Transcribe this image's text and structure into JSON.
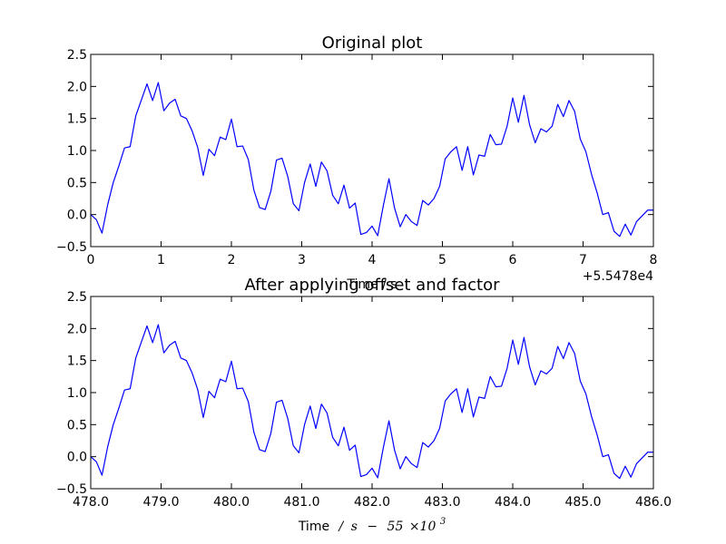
{
  "chart_data": [
    {
      "type": "line",
      "title": "Original plot",
      "xlabel": "Time / s",
      "ylabel": "",
      "xlim": [
        0,
        8
      ],
      "ylim": [
        -0.5,
        2.5
      ],
      "xticks": [
        0,
        1,
        2,
        3,
        4,
        5,
        6,
        7,
        8
      ],
      "xtick_labels": [
        "0",
        "1",
        "2",
        "3",
        "4",
        "5",
        "6",
        "7",
        "8"
      ],
      "yticks": [
        -0.5,
        0.0,
        0.5,
        1.0,
        1.5,
        2.0,
        2.5
      ],
      "ytick_labels": [
        "−0.5",
        "0.0",
        "0.5",
        "1.0",
        "1.5",
        "2.0",
        "2.5"
      ],
      "offset_text": "+5.5478e4",
      "grid": false,
      "line_color": "#0000ff",
      "x": [
        0,
        0.08,
        0.16,
        0.24,
        0.32,
        0.4,
        0.48,
        0.56,
        0.64,
        0.72,
        0.8,
        0.88,
        0.96,
        1.04,
        1.12,
        1.2,
        1.28,
        1.36,
        1.44,
        1.52,
        1.6,
        1.68,
        1.76,
        1.84,
        1.92,
        2.0,
        2.08,
        2.16,
        2.24,
        2.32,
        2.4,
        2.48,
        2.56,
        2.64,
        2.72,
        2.8,
        2.88,
        2.96,
        3.04,
        3.12,
        3.2,
        3.28,
        3.36,
        3.44,
        3.52,
        3.6,
        3.68,
        3.76,
        3.84,
        3.92,
        4.0,
        4.08,
        4.16,
        4.24,
        4.32,
        4.4,
        4.48,
        4.56,
        4.64,
        4.72,
        4.8,
        4.88,
        4.96,
        5.04,
        5.12,
        5.2,
        5.28,
        5.36,
        5.44,
        5.52,
        5.6,
        5.68,
        5.76,
        5.84,
        5.92,
        6.0,
        6.08,
        6.16,
        6.24,
        6.32,
        6.4,
        6.48,
        6.56,
        6.64,
        6.72,
        6.8,
        6.88,
        6.96,
        7.04,
        7.12,
        7.2,
        7.28,
        7.36,
        7.44,
        7.52,
        7.6,
        7.68,
        7.76,
        7.84,
        7.92,
        8.0
      ],
      "y": [
        0.0,
        -0.08,
        -0.29,
        0.15,
        0.5,
        0.76,
        1.04,
        1.06,
        1.54,
        1.79,
        2.04,
        1.78,
        2.06,
        1.62,
        1.74,
        1.8,
        1.54,
        1.5,
        1.31,
        1.05,
        0.61,
        1.02,
        0.92,
        1.21,
        1.17,
        1.49,
        1.06,
        1.07,
        0.86,
        0.38,
        0.11,
        0.08,
        0.36,
        0.85,
        0.88,
        0.6,
        0.17,
        0.06,
        0.5,
        0.79,
        0.44,
        0.82,
        0.68,
        0.3,
        0.17,
        0.46,
        0.1,
        0.18,
        -0.31,
        -0.28,
        -0.18,
        -0.33,
        0.14,
        0.56,
        0.1,
        -0.19,
        0.0,
        -0.11,
        -0.17,
        0.22,
        0.15,
        0.25,
        0.44,
        0.87,
        0.98,
        1.06,
        0.69,
        1.06,
        0.62,
        0.93,
        0.91,
        1.25,
        1.09,
        1.1,
        1.38,
        1.82,
        1.44,
        1.86,
        1.4,
        1.12,
        1.34,
        1.29,
        1.38,
        1.72,
        1.53,
        1.78,
        1.61,
        1.18,
        0.98,
        0.63,
        0.34,
        0.0,
        0.03,
        -0.26,
        -0.34,
        -0.15,
        -0.32,
        -0.11,
        -0.02,
        0.07,
        0.07
      ]
    },
    {
      "type": "line",
      "title": "After applying offset and factor",
      "xlabel_parts": [
        "Time",
        "/",
        "s",
        "−",
        "55",
        "×10",
        "3"
      ],
      "ylabel": "",
      "xlim": [
        478.0,
        486.0
      ],
      "ylim": [
        -0.5,
        2.5
      ],
      "xticks": [
        478.0,
        479.0,
        480.0,
        481.0,
        482.0,
        483.0,
        484.0,
        485.0,
        486.0
      ],
      "xtick_labels": [
        "478.0",
        "479.0",
        "480.0",
        "481.0",
        "482.0",
        "483.0",
        "484.0",
        "485.0",
        "486.0"
      ],
      "yticks": [
        -0.5,
        0.0,
        0.5,
        1.0,
        1.5,
        2.0,
        2.5
      ],
      "ytick_labels": [
        "−0.5",
        "0.0",
        "0.5",
        "1.0",
        "1.5",
        "2.0",
        "2.5"
      ],
      "grid": false,
      "line_color": "#0000ff",
      "x": [
        478.0,
        478.08,
        478.16,
        478.24,
        478.32,
        478.4,
        478.48,
        478.56,
        478.64,
        478.72,
        478.8,
        478.88,
        478.96,
        479.04,
        479.12,
        479.2,
        479.28,
        479.36,
        479.44,
        479.52,
        479.6,
        479.68,
        479.76,
        479.84,
        479.92,
        480.0,
        480.08,
        480.16,
        480.24,
        480.32,
        480.4,
        480.48,
        480.56,
        480.64,
        480.72,
        480.8,
        480.88,
        480.96,
        481.04,
        481.12,
        481.2,
        481.28,
        481.36,
        481.44,
        481.52,
        481.6,
        481.68,
        481.76,
        481.84,
        481.92,
        482.0,
        482.08,
        482.16,
        482.24,
        482.32,
        482.4,
        482.48,
        482.56,
        482.64,
        482.72,
        482.8,
        482.88,
        482.96,
        483.04,
        483.12,
        483.2,
        483.28,
        483.36,
        483.44,
        483.52,
        483.6,
        483.68,
        483.76,
        483.84,
        483.92,
        484.0,
        484.08,
        484.16,
        484.24,
        484.32,
        484.4,
        484.48,
        484.56,
        484.64,
        484.72,
        484.8,
        484.88,
        484.96,
        485.04,
        485.12,
        485.2,
        485.28,
        485.36,
        485.44,
        485.52,
        485.6,
        485.68,
        485.76,
        485.84,
        485.92,
        486.0
      ],
      "y": [
        0.0,
        -0.08,
        -0.29,
        0.15,
        0.5,
        0.76,
        1.04,
        1.06,
        1.54,
        1.79,
        2.04,
        1.78,
        2.06,
        1.62,
        1.74,
        1.8,
        1.54,
        1.5,
        1.31,
        1.05,
        0.61,
        1.02,
        0.92,
        1.21,
        1.17,
        1.49,
        1.06,
        1.07,
        0.86,
        0.38,
        0.11,
        0.08,
        0.36,
        0.85,
        0.88,
        0.6,
        0.17,
        0.06,
        0.5,
        0.79,
        0.44,
        0.82,
        0.68,
        0.3,
        0.17,
        0.46,
        0.1,
        0.18,
        -0.31,
        -0.28,
        -0.18,
        -0.33,
        0.14,
        0.56,
        0.1,
        -0.19,
        0.0,
        -0.11,
        -0.17,
        0.22,
        0.15,
        0.25,
        0.44,
        0.87,
        0.98,
        1.06,
        0.69,
        1.06,
        0.62,
        0.93,
        0.91,
        1.25,
        1.09,
        1.1,
        1.38,
        1.82,
        1.44,
        1.86,
        1.4,
        1.12,
        1.34,
        1.29,
        1.38,
        1.72,
        1.53,
        1.78,
        1.61,
        1.18,
        0.98,
        0.63,
        0.34,
        0.0,
        0.03,
        -0.26,
        -0.34,
        -0.15,
        -0.32,
        -0.11,
        -0.02,
        0.07,
        0.07
      ]
    }
  ]
}
